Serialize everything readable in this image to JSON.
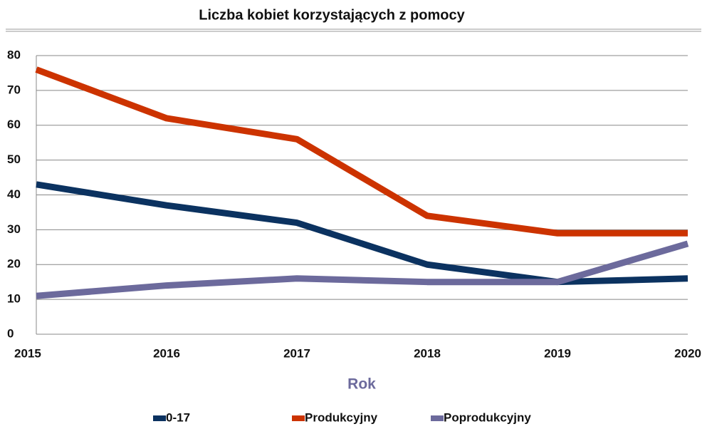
{
  "chart_data": {
    "type": "line",
    "title": "Liczba kobiet korzystających z pomocy",
    "x_label": "Rok",
    "x": [
      2015,
      2016,
      2017,
      2018,
      2019,
      2020
    ],
    "xlim": [
      2015,
      2020
    ],
    "xticks": [
      2015,
      2016,
      2017,
      2018,
      2019,
      2020
    ],
    "ylim": [
      0,
      80
    ],
    "yticks": [
      0,
      10,
      20,
      30,
      40,
      50,
      60,
      70,
      80
    ],
    "grid": true,
    "legend": "bottom",
    "series": [
      {
        "name": "0-17",
        "color": "#0b3260",
        "values": [
          43,
          37,
          32,
          20,
          15,
          16
        ]
      },
      {
        "name": "Produkcyjny",
        "color": "#cc3300",
        "values": [
          76,
          62,
          56,
          34,
          29,
          29
        ]
      },
      {
        "name": "Poprodukcyjny",
        "color": "#6c6a9c",
        "values": [
          11,
          14,
          16,
          15,
          15,
          26
        ]
      }
    ]
  }
}
